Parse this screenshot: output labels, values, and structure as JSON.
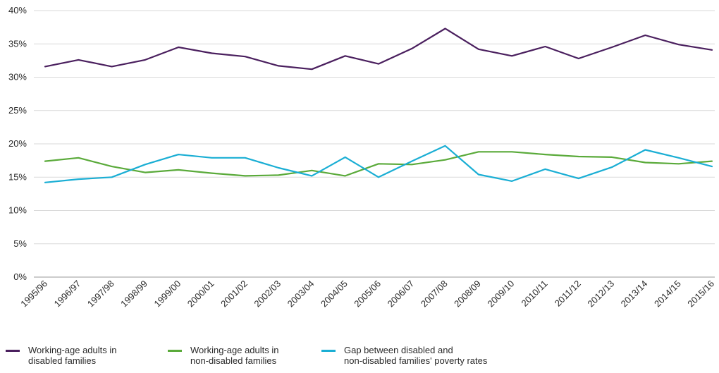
{
  "chart_data": {
    "type": "line",
    "categories": [
      "1995/96",
      "1996/97",
      "1997/98",
      "1998/99",
      "1999/00",
      "2000/01",
      "2001/02",
      "2002/03",
      "2003/04",
      "2004/05",
      "2005/06",
      "2006/07",
      "2007/08",
      "2008/09",
      "2009/10",
      "2010/11",
      "2011/12",
      "2012/13",
      "2013/14",
      "2014/15",
      "2015/16"
    ],
    "ylim": [
      0,
      40
    ],
    "yticks": [
      0,
      5,
      10,
      15,
      20,
      25,
      30,
      35,
      40
    ],
    "ytick_labels": [
      "0%",
      "5%",
      "10%",
      "15%",
      "20%",
      "25%",
      "30%",
      "35%",
      "40%"
    ],
    "grid": true,
    "legend_position": "bottom",
    "series": [
      {
        "name": "Working-age adults in disabled families",
        "name_lines": [
          "Working-age adults in",
          "disabled families"
        ],
        "color": "#4a1f5e",
        "values": [
          31.6,
          32.6,
          31.6,
          32.6,
          34.5,
          33.6,
          33.1,
          31.7,
          31.2,
          33.2,
          32.0,
          34.3,
          37.3,
          34.2,
          33.2,
          34.6,
          32.8,
          34.5,
          36.3,
          34.9,
          34.1
        ]
      },
      {
        "name": "Working-age adults in non-disabled families",
        "name_lines": [
          "Working-age adults in",
          "non-disabled families"
        ],
        "color": "#5aaa3a",
        "values": [
          17.4,
          17.9,
          16.6,
          15.7,
          16.1,
          15.6,
          15.2,
          15.3,
          16.0,
          15.2,
          17.0,
          16.9,
          17.6,
          18.8,
          18.8,
          18.4,
          18.1,
          18.0,
          17.2,
          17.0,
          17.4
        ]
      },
      {
        "name": "Gap between disabled and non-disabled families' poverty rates",
        "name_lines": [
          "Gap between disabled and",
          "non-disabled families' poverty rates"
        ],
        "color": "#1aaed4",
        "values": [
          14.2,
          14.7,
          15.0,
          16.9,
          18.4,
          17.9,
          17.9,
          16.4,
          15.2,
          18.0,
          15.0,
          17.4,
          19.7,
          15.4,
          14.4,
          16.2,
          14.8,
          16.5,
          19.1,
          17.9,
          16.6
        ]
      }
    ]
  }
}
